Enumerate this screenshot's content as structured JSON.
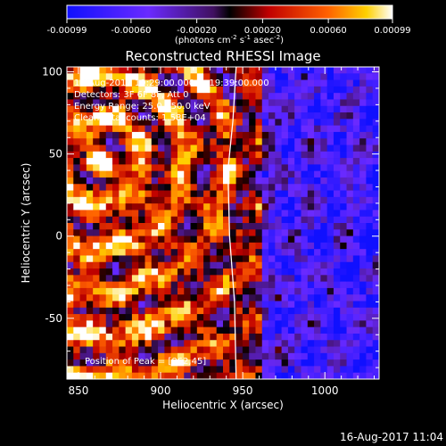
{
  "chart_data": {
    "type": "heatmap",
    "title": "Reconstructed RHESSI Image",
    "xlabel": "Heliocentric X (arcsec)",
    "ylabel": "Heliocentric Y (arcsec)",
    "xlim": [
      843,
      1033
    ],
    "ylim": [
      -87,
      103
    ],
    "x_ticks": [
      850,
      900,
      950,
      1000
    ],
    "y_ticks": [
      -50,
      0,
      50,
      100
    ],
    "colorbar": {
      "range": [
        -0.00099,
        0.00099
      ],
      "tick_values": [
        -0.00099,
        -0.0006,
        -0.0002,
        0.0002,
        0.0006,
        0.00099
      ],
      "tick_labels": [
        "-0.00099",
        "-0.00060",
        "-0.00020",
        "0.00020",
        "0.00060",
        "0.00099"
      ],
      "unit_main": "(photons cm",
      "unit_sup1": "-2",
      "unit_mid": " s",
      "unit_sup2": "-1",
      "unit_end": " asec",
      "unit_sup3": "-2",
      "unit_close": ")"
    },
    "annotations": {
      "time_range": "14-Aug-2017 19:29:00.000 to 19:39:00.000",
      "detectors": "Detectors: 3F 6F 8F, Att 0",
      "energy": "Energy Range: 25.0 - 50.0 keV",
      "clean": "Clean    Total counts: 1.58E+04",
      "peak": "Position of Peak = [862,45]"
    },
    "peak": [
      862,
      45
    ],
    "limb_curve_x_at_y": [
      [
        -87,
        946
      ],
      [
        -40,
        945
      ],
      [
        0,
        942
      ],
      [
        40,
        941
      ],
      [
        70,
        944
      ],
      [
        103,
        946
      ]
    ],
    "timestamp": "16-Aug-2017 11:04"
  }
}
